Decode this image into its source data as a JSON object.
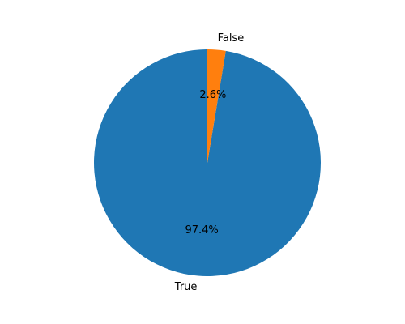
{
  "chart_data": {
    "type": "pie",
    "categories": [
      "True",
      "False"
    ],
    "values": [
      97.4,
      2.6
    ],
    "percent_labels": [
      "97.4%",
      "2.6%"
    ],
    "colors": [
      "#1f77b4",
      "#ff7f0e"
    ],
    "title": "",
    "legend": "none",
    "start_angle_deg": 90,
    "direction": "counterclockwise"
  }
}
